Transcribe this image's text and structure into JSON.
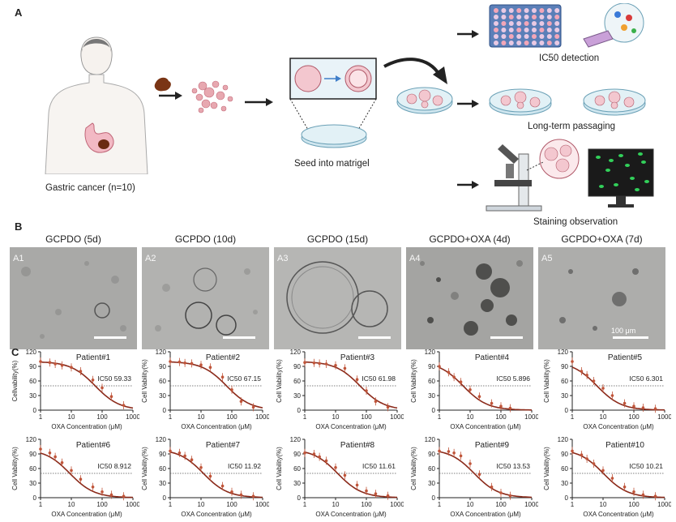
{
  "panels": {
    "a_label": "A",
    "b_label": "B",
    "c_label": "C"
  },
  "panelA": {
    "gastric_label": "Gastric cancer (n=10)",
    "seed_label": "Seed into matrigel",
    "ic50_label": "IC50 detection",
    "passage_label": "Long-term passaging",
    "staining_label": "Staining observation"
  },
  "panelB": {
    "images": [
      {
        "id": "A1",
        "title": "GCPDO (5d)"
      },
      {
        "id": "A2",
        "title": "GCPDO (10d)"
      },
      {
        "id": "A3",
        "title": "GCPDO (15d)"
      },
      {
        "id": "A4",
        "title": "GCPDO+OXA (4d)"
      },
      {
        "id": "A5",
        "title": "GCPDO+OXA (7d)",
        "scale": "100 μm"
      }
    ]
  },
  "chart_data": [
    {
      "type": "line",
      "title": "Patient#1",
      "ic50": 59.33,
      "ic50_label": "IC50 59.33",
      "ylabel": "Cellvability(%)",
      "xlabel": "OXA Concentration (μM)",
      "xlog": true,
      "xlim": [
        1,
        1000
      ],
      "ylim": [
        0,
        120
      ],
      "yticks": [
        0,
        30,
        60,
        90,
        120
      ],
      "xticks": [
        "1",
        "10",
        "100",
        "1000"
      ],
      "x": [
        1,
        2,
        3,
        5,
        10,
        20,
        50,
        100,
        200,
        500
      ],
      "y": [
        100,
        98,
        95,
        92,
        88,
        80,
        62,
        46,
        28,
        10
      ]
    },
    {
      "type": "line",
      "title": "Patient#2",
      "ic50": 67.15,
      "ic50_label": "IC50 67.15",
      "ylabel": "Cell Vability(%)",
      "xlabel": "OXA Concentration (μM)",
      "xlog": true,
      "xlim": [
        1,
        1000
      ],
      "ylim": [
        0,
        120
      ],
      "yticks": [
        0,
        30,
        60,
        90,
        120
      ],
      "xticks": [
        "1",
        "10",
        "100",
        "1000"
      ],
      "x": [
        1,
        2,
        3,
        5,
        10,
        20,
        50,
        100,
        200,
        500
      ],
      "y": [
        100,
        99,
        97,
        96,
        93,
        88,
        68,
        42,
        18,
        6
      ]
    },
    {
      "type": "line",
      "title": "Patient#3",
      "ic50": 61.98,
      "ic50_label": "IC50 61.98",
      "ylabel": "Cell Vability(%)",
      "xlabel": "OXA Concentration (μM)",
      "xlog": true,
      "xlim": [
        1,
        1000
      ],
      "ylim": [
        0,
        120
      ],
      "yticks": [
        0,
        30,
        60,
        90,
        120
      ],
      "xticks": [
        "1",
        "10",
        "100",
        "1000"
      ],
      "x": [
        1,
        2,
        3,
        5,
        10,
        20,
        50,
        100,
        200,
        500
      ],
      "y": [
        98,
        97,
        96,
        95,
        92,
        86,
        63,
        40,
        18,
        6
      ]
    },
    {
      "type": "line",
      "title": "Patient#4",
      "ic50": 5.896,
      "ic50_label": "IC50 5.896",
      "ylabel": "Cell Vability(%)",
      "xlabel": "OXA Concentration (μM)",
      "xlog": true,
      "xlim": [
        1,
        1000
      ],
      "ylim": [
        0,
        120
      ],
      "yticks": [
        0,
        30,
        60,
        90,
        120
      ],
      "xticks": [
        "1",
        "10",
        "100",
        "1000"
      ],
      "x": [
        1,
        2,
        3,
        5,
        10,
        20,
        50,
        100,
        200
      ],
      "y": [
        90,
        78,
        68,
        58,
        42,
        28,
        14,
        8,
        4
      ]
    },
    {
      "type": "line",
      "title": "Patient#5",
      "ic50": 6.301,
      "ic50_label": "IC50 6.301",
      "ylabel": "Cell Vability(%)",
      "xlabel": "OXA Concentration (μM)",
      "xlog": true,
      "xlim": [
        1,
        1000
      ],
      "ylim": [
        0,
        120
      ],
      "yticks": [
        0,
        30,
        60,
        90,
        120
      ],
      "xticks": [
        "1",
        "10",
        "100",
        "1000"
      ],
      "x": [
        1,
        2,
        3,
        5,
        10,
        20,
        50,
        100,
        200,
        500
      ],
      "y": [
        100,
        80,
        72,
        60,
        45,
        30,
        14,
        8,
        5,
        3
      ]
    },
    {
      "type": "line",
      "title": "Patient#6",
      "ic50": 8.912,
      "ic50_label": "IC50 8.912",
      "ylabel": "Cell Vability(%)",
      "xlabel": "OXA Concentration (μM)",
      "xlog": true,
      "xlim": [
        1,
        1000
      ],
      "ylim": [
        0,
        120
      ],
      "yticks": [
        0,
        30,
        60,
        90,
        120
      ],
      "xticks": [
        "1",
        "10",
        "100",
        "1000"
      ],
      "x": [
        1,
        2,
        3,
        5,
        10,
        20,
        50,
        100,
        200,
        500
      ],
      "y": [
        100,
        92,
        84,
        72,
        56,
        38,
        22,
        12,
        6,
        3
      ]
    },
    {
      "type": "line",
      "title": "Patient#7",
      "ic50": 11.92,
      "ic50_label": "IC50 11.92",
      "ylabel": "Cell Vability(%)",
      "xlabel": "OXA Concentration (μM)",
      "xlog": true,
      "xlim": [
        1,
        1000
      ],
      "ylim": [
        0,
        120
      ],
      "yticks": [
        0,
        30,
        60,
        90,
        120
      ],
      "xticks": [
        "1",
        "10",
        "100",
        "1000"
      ],
      "x": [
        1,
        2,
        3,
        5,
        10,
        20,
        50,
        100,
        200,
        500
      ],
      "y": [
        96,
        92,
        86,
        78,
        62,
        44,
        24,
        12,
        6,
        3
      ]
    },
    {
      "type": "line",
      "title": "Patient#8",
      "ic50": 11.61,
      "ic50_label": "IC50 11.61",
      "ylabel": "Cell Vability(%)",
      "xlabel": "OXA Concentration (μM)",
      "xlog": true,
      "xlim": [
        1,
        1000
      ],
      "ylim": [
        0,
        120
      ],
      "yticks": [
        0,
        30,
        60,
        90,
        120
      ],
      "xticks": [
        "1",
        "10",
        "100",
        "1000"
      ],
      "x": [
        1,
        2,
        3,
        5,
        10,
        20,
        50,
        100,
        200,
        500
      ],
      "y": [
        92,
        90,
        84,
        76,
        62,
        46,
        26,
        14,
        8,
        4
      ]
    },
    {
      "type": "line",
      "title": "Patient#9",
      "ic50": 13.53,
      "ic50_label": "IC50 13.53",
      "ylabel": "Cell Vability(%)",
      "xlabel": "OXA Concentration (μM)",
      "xlog": true,
      "xlim": [
        1,
        1000
      ],
      "ylim": [
        0,
        120
      ],
      "yticks": [
        0,
        30,
        60,
        90,
        120
      ],
      "xticks": [
        "1",
        "10",
        "100",
        "1000"
      ],
      "x": [
        1,
        2,
        3,
        5,
        10,
        20,
        50,
        100,
        200
      ],
      "y": [
        96,
        95,
        92,
        86,
        70,
        48,
        22,
        10,
        4
      ]
    },
    {
      "type": "line",
      "title": "Patient#10",
      "ic50": 10.21,
      "ic50_label": "IC50 10.21",
      "ylabel": "Cell Vability(%)",
      "xlabel": "OXA Concentration (μM)",
      "xlog": true,
      "xlim": [
        1,
        1000
      ],
      "ylim": [
        0,
        120
      ],
      "yticks": [
        0,
        30,
        60,
        90,
        120
      ],
      "xticks": [
        "1",
        "10",
        "100",
        "1000"
      ],
      "x": [
        1,
        2,
        3,
        5,
        10,
        20,
        50,
        100,
        200,
        500
      ],
      "y": [
        96,
        88,
        80,
        70,
        56,
        40,
        22,
        12,
        6,
        3
      ]
    }
  ],
  "colors": {
    "curve": "#8b2a1a",
    "points": "#c0553a",
    "ref": "#555555"
  }
}
